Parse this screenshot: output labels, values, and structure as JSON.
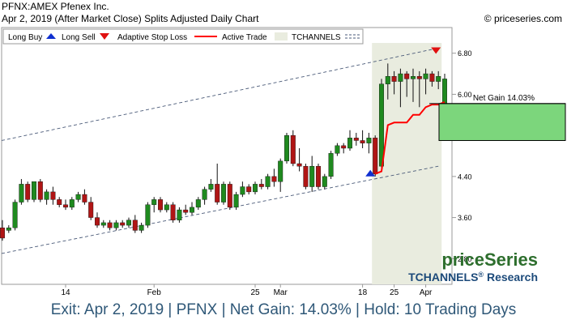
{
  "header": {
    "symbol": "PFNX:AMEX Pfenex Inc.",
    "subtitle": "Apr 2, 2019 (After Market Close)  Splits Adjusted Daily Chart",
    "copyright": "© priceseries.com"
  },
  "legend": {
    "long_buy": "Long Buy",
    "long_sell": "Long Sell",
    "adaptive_stop": "Adaptive Stop Loss",
    "active_trade": "Active Trade",
    "tchannels": "TCHANNELS"
  },
  "brand": {
    "name": "priceSeries",
    "tag_main": "TCHANNELS",
    "tag_reg": "®",
    "tag_sub": " Research"
  },
  "colors": {
    "up": "#1f8a1f",
    "down": "#b01515",
    "stop": "#ff0000",
    "buy": "#1030d0",
    "sell": "#e01010",
    "channel": "#4a5a78",
    "active_band": "#e9ecdf",
    "gain_box": "#7cd67c",
    "brand_green": "#2d6e2d",
    "brand_blue": "#1c4a7a"
  },
  "footer": {
    "text": "Exit: Apr 2, 2019 | PFNX | Net Gain: 14.03% | Hold: 10 Trading Days"
  },
  "chart_data": {
    "type": "candlestick",
    "y_ticks": [
      "2.80",
      "3.60",
      "4.40",
      "5.20",
      "6.00",
      "6.80"
    ],
    "y_tick_values": [
      2.8,
      3.6,
      4.4,
      5.2,
      6.0,
      6.8
    ],
    "ylim": [
      2.3,
      7.3
    ],
    "x_ticks": [
      {
        "label": "14",
        "index": 10
      },
      {
        "label": "Feb",
        "index": 24
      },
      {
        "label": "25",
        "index": 40
      },
      {
        "label": "Mar",
        "index": 44
      },
      {
        "label": "18",
        "index": 57
      },
      {
        "label": "25",
        "index": 62
      },
      {
        "label": "Apr",
        "index": 67
      }
    ],
    "candles": [
      {
        "o": 3.4,
        "h": 3.55,
        "l": 3.15,
        "c": 3.2
      },
      {
        "o": 3.35,
        "h": 3.45,
        "l": 3.3,
        "c": 3.4
      },
      {
        "o": 3.4,
        "h": 3.95,
        "l": 3.35,
        "c": 3.9
      },
      {
        "o": 3.9,
        "h": 4.35,
        "l": 3.85,
        "c": 4.25
      },
      {
        "o": 4.25,
        "h": 4.3,
        "l": 3.9,
        "c": 3.95
      },
      {
        "o": 3.95,
        "h": 4.3,
        "l": 3.9,
        "c": 4.3
      },
      {
        "o": 4.3,
        "h": 4.35,
        "l": 3.9,
        "c": 3.95
      },
      {
        "o": 3.95,
        "h": 4.15,
        "l": 3.85,
        "c": 4.1
      },
      {
        "o": 4.1,
        "h": 4.2,
        "l": 3.85,
        "c": 3.95
      },
      {
        "o": 3.95,
        "h": 4.0,
        "l": 3.8,
        "c": 3.85
      },
      {
        "o": 3.85,
        "h": 3.95,
        "l": 3.75,
        "c": 3.8
      },
      {
        "o": 3.8,
        "h": 4.0,
        "l": 3.75,
        "c": 3.95
      },
      {
        "o": 3.95,
        "h": 4.1,
        "l": 3.9,
        "c": 4.05
      },
      {
        "o": 4.05,
        "h": 4.15,
        "l": 3.85,
        "c": 3.9
      },
      {
        "o": 3.9,
        "h": 4.0,
        "l": 3.55,
        "c": 3.6
      },
      {
        "o": 3.6,
        "h": 3.7,
        "l": 3.4,
        "c": 3.45
      },
      {
        "o": 3.45,
        "h": 3.55,
        "l": 3.4,
        "c": 3.5
      },
      {
        "o": 3.5,
        "h": 3.55,
        "l": 3.35,
        "c": 3.4
      },
      {
        "o": 3.4,
        "h": 3.55,
        "l": 3.35,
        "c": 3.5
      },
      {
        "o": 3.5,
        "h": 3.55,
        "l": 3.4,
        "c": 3.45
      },
      {
        "o": 3.45,
        "h": 3.6,
        "l": 3.4,
        "c": 3.55
      },
      {
        "o": 3.55,
        "h": 3.65,
        "l": 3.3,
        "c": 3.35
      },
      {
        "o": 3.35,
        "h": 3.5,
        "l": 3.3,
        "c": 3.45
      },
      {
        "o": 3.45,
        "h": 3.9,
        "l": 3.4,
        "c": 3.85
      },
      {
        "o": 3.85,
        "h": 4.0,
        "l": 3.7,
        "c": 3.95
      },
      {
        "o": 3.95,
        "h": 4.0,
        "l": 3.7,
        "c": 3.75
      },
      {
        "o": 3.75,
        "h": 3.9,
        "l": 3.7,
        "c": 3.85
      },
      {
        "o": 3.85,
        "h": 3.9,
        "l": 3.5,
        "c": 3.55
      },
      {
        "o": 3.55,
        "h": 3.8,
        "l": 3.5,
        "c": 3.75
      },
      {
        "o": 3.75,
        "h": 3.85,
        "l": 3.65,
        "c": 3.7
      },
      {
        "o": 3.7,
        "h": 3.9,
        "l": 3.65,
        "c": 3.8
      },
      {
        "o": 3.8,
        "h": 4.0,
        "l": 3.75,
        "c": 3.95
      },
      {
        "o": 3.95,
        "h": 4.2,
        "l": 3.85,
        "c": 4.15
      },
      {
        "o": 4.15,
        "h": 4.35,
        "l": 4.1,
        "c": 4.25
      },
      {
        "o": 4.25,
        "h": 4.65,
        "l": 3.85,
        "c": 3.9
      },
      {
        "o": 3.9,
        "h": 4.3,
        "l": 3.85,
        "c": 4.25
      },
      {
        "o": 4.25,
        "h": 4.3,
        "l": 3.75,
        "c": 3.8
      },
      {
        "o": 3.8,
        "h": 4.1,
        "l": 3.75,
        "c": 4.05
      },
      {
        "o": 4.05,
        "h": 4.3,
        "l": 4.0,
        "c": 4.2
      },
      {
        "o": 4.2,
        "h": 4.25,
        "l": 4.05,
        "c": 4.1
      },
      {
        "o": 4.1,
        "h": 4.3,
        "l": 4.05,
        "c": 4.25
      },
      {
        "o": 4.25,
        "h": 4.35,
        "l": 4.15,
        "c": 4.2
      },
      {
        "o": 4.2,
        "h": 4.45,
        "l": 4.15,
        "c": 4.4
      },
      {
        "o": 4.4,
        "h": 4.55,
        "l": 4.2,
        "c": 4.3
      },
      {
        "o": 4.3,
        "h": 4.75,
        "l": 4.1,
        "c": 4.7
      },
      {
        "o": 4.7,
        "h": 5.25,
        "l": 4.65,
        "c": 5.2
      },
      {
        "o": 5.2,
        "h": 5.3,
        "l": 4.6,
        "c": 4.65
      },
      {
        "o": 4.65,
        "h": 4.95,
        "l": 4.5,
        "c": 4.6
      },
      {
        "o": 4.6,
        "h": 4.65,
        "l": 4.15,
        "c": 4.2
      },
      {
        "o": 4.2,
        "h": 4.8,
        "l": 4.1,
        "c": 4.6
      },
      {
        "o": 4.6,
        "h": 4.65,
        "l": 4.15,
        "c": 4.2
      },
      {
        "o": 4.2,
        "h": 4.45,
        "l": 4.15,
        "c": 4.4
      },
      {
        "o": 4.4,
        "h": 4.9,
        "l": 4.35,
        "c": 4.85
      },
      {
        "o": 4.85,
        "h": 5.05,
        "l": 4.8,
        "c": 5.0
      },
      {
        "o": 5.0,
        "h": 5.05,
        "l": 4.85,
        "c": 4.95
      },
      {
        "o": 4.95,
        "h": 5.3,
        "l": 4.9,
        "c": 5.15
      },
      {
        "o": 5.15,
        "h": 5.25,
        "l": 5.0,
        "c": 5.1
      },
      {
        "o": 5.1,
        "h": 5.3,
        "l": 4.95,
        "c": 5.05
      },
      {
        "o": 5.05,
        "h": 5.25,
        "l": 4.85,
        "c": 5.15
      },
      {
        "o": 5.15,
        "h": 5.2,
        "l": 4.4,
        "c": 4.45
      },
      {
        "o": 4.6,
        "h": 6.3,
        "l": 4.55,
        "c": 6.2
      },
      {
        "o": 6.2,
        "h": 6.6,
        "l": 5.9,
        "c": 6.35
      },
      {
        "o": 6.35,
        "h": 6.45,
        "l": 6.0,
        "c": 6.25
      },
      {
        "o": 6.25,
        "h": 6.5,
        "l": 5.75,
        "c": 6.4
      },
      {
        "o": 6.4,
        "h": 6.45,
        "l": 5.95,
        "c": 6.3
      },
      {
        "o": 6.3,
        "h": 6.5,
        "l": 5.85,
        "c": 6.35
      },
      {
        "o": 6.35,
        "h": 6.45,
        "l": 5.75,
        "c": 6.3
      },
      {
        "o": 6.3,
        "h": 6.5,
        "l": 6.0,
        "c": 6.4
      },
      {
        "o": 6.4,
        "h": 6.45,
        "l": 6.15,
        "c": 6.25
      },
      {
        "o": 6.25,
        "h": 6.45,
        "l": 6.1,
        "c": 6.35
      },
      {
        "o": 5.8,
        "h": 6.4,
        "l": 5.75,
        "c": 6.3
      }
    ],
    "stop_loss": [
      {
        "index": 59,
        "value": 4.45
      },
      {
        "index": 60,
        "value": 4.5
      },
      {
        "index": 61,
        "value": 5.4
      },
      {
        "index": 62,
        "value": 5.45
      },
      {
        "index": 63,
        "value": 5.45
      },
      {
        "index": 64,
        "value": 5.45
      },
      {
        "index": 65,
        "value": 5.6
      },
      {
        "index": 66,
        "value": 5.6
      },
      {
        "index": 67,
        "value": 5.75
      },
      {
        "index": 68,
        "value": 5.8
      },
      {
        "index": 69,
        "value": 5.8
      },
      {
        "index": 70,
        "value": 5.85
      }
    ],
    "channel_upper": [
      {
        "index": 0,
        "value": 5.1
      },
      {
        "index": 69,
        "value": 6.9
      }
    ],
    "channel_lower": [
      {
        "index": 0,
        "value": 2.9
      },
      {
        "index": 69,
        "value": 4.6
      }
    ],
    "active_trade": {
      "start_index": 59,
      "end_index": 69
    },
    "long_buy": {
      "index": 59,
      "value": 4.45
    },
    "long_sell": {
      "index": 69,
      "value": 6.85
    },
    "net_gain": {
      "label": "Net Gain 14.03%",
      "from": 5.1,
      "to": 5.82
    }
  }
}
